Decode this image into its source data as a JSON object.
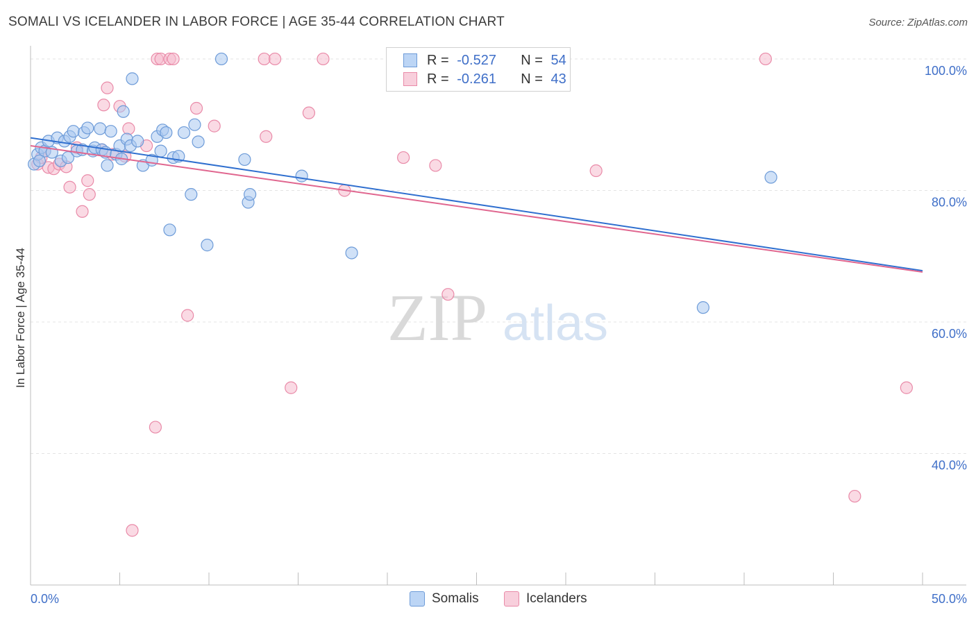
{
  "header": {
    "title": "SOMALI VS ICELANDER IN LABOR FORCE | AGE 35-44 CORRELATION CHART",
    "source": "Source: ZipAtlas.com"
  },
  "watermark": {
    "zip": "ZIP",
    "atlas": "atlas"
  },
  "legend": {
    "somali": {
      "r_label": "R =",
      "r_value": "-0.527",
      "n_label": "N =",
      "n_value": "54"
    },
    "icelander": {
      "r_label": "R =",
      "r_value": "-0.261",
      "n_label": "N =",
      "n_value": "43"
    }
  },
  "bottom_legend": {
    "somalis": "Somalis",
    "icelanders": "Icelanders"
  },
  "colors": {
    "somali_fill": "#a9c8f0",
    "somali_stroke": "#6d9bd8",
    "somali_line": "#2f6fcf",
    "icelander_fill": "#f6bccd",
    "icelander_stroke": "#e98aa8",
    "icelander_line": "#e0668f",
    "tick_text": "#3f6fc8"
  },
  "chart_data": {
    "type": "scatter",
    "title": "SOMALI VS ICELANDER IN LABOR FORCE | AGE 35-44 CORRELATION CHART",
    "ylabel": "In Labor Force | Age 35-44",
    "xlabel": "",
    "xlim": [
      0,
      50
    ],
    "ylim": [
      20,
      102
    ],
    "x_ticks": [
      {
        "value": 0,
        "label": "0.0%"
      },
      {
        "value": 50,
        "label": "50.0%"
      }
    ],
    "y_ticks": [
      {
        "value": 100,
        "label": "100.0%"
      },
      {
        "value": 80,
        "label": "80.0%"
      },
      {
        "value": 60,
        "label": "60.0%"
      },
      {
        "value": 40,
        "label": "40.0%"
      }
    ],
    "grid": true,
    "series": [
      {
        "name": "Somalis",
        "trend": {
          "x": [
            0,
            50
          ],
          "y": [
            88.0,
            67.8
          ]
        },
        "points": [
          [
            0.2,
            84.0
          ],
          [
            0.4,
            85.5
          ],
          [
            0.6,
            86.5
          ],
          [
            0.8,
            86.0
          ],
          [
            1.0,
            87.5
          ],
          [
            1.2,
            85.8
          ],
          [
            1.5,
            88.0
          ],
          [
            1.7,
            84.5
          ],
          [
            1.9,
            87.5
          ],
          [
            2.1,
            85.0
          ],
          [
            2.2,
            88.2
          ],
          [
            2.4,
            89.0
          ],
          [
            2.6,
            86.0
          ],
          [
            2.9,
            86.2
          ],
          [
            3.0,
            88.8
          ],
          [
            3.2,
            89.5
          ],
          [
            3.5,
            86.0
          ],
          [
            3.6,
            86.5
          ],
          [
            3.9,
            89.4
          ],
          [
            4.0,
            86.2
          ],
          [
            4.2,
            85.8
          ],
          [
            4.3,
            83.8
          ],
          [
            4.5,
            89.0
          ],
          [
            4.8,
            85.5
          ],
          [
            5.0,
            86.8
          ],
          [
            5.1,
            84.8
          ],
          [
            5.2,
            92.0
          ],
          [
            5.4,
            87.8
          ],
          [
            5.6,
            86.8
          ],
          [
            5.7,
            97.0
          ],
          [
            6.0,
            87.5
          ],
          [
            6.3,
            83.8
          ],
          [
            7.1,
            88.2
          ],
          [
            7.3,
            86.0
          ],
          [
            7.4,
            89.2
          ],
          [
            7.6,
            88.8
          ],
          [
            7.8,
            74.0
          ],
          [
            8.0,
            85.0
          ],
          [
            8.3,
            85.2
          ],
          [
            8.6,
            88.8
          ],
          [
            9.0,
            79.4
          ],
          [
            9.2,
            90.0
          ],
          [
            9.4,
            87.4
          ],
          [
            9.9,
            71.7
          ],
          [
            10.7,
            100.0
          ],
          [
            12.0,
            84.7
          ],
          [
            12.2,
            78.2
          ],
          [
            12.3,
            79.4
          ],
          [
            15.2,
            82.2
          ],
          [
            18.0,
            70.5
          ],
          [
            37.7,
            62.2
          ],
          [
            41.5,
            82.0
          ],
          [
            0.5,
            84.5
          ],
          [
            6.8,
            84.6
          ]
        ]
      },
      {
        "name": "Icelanders",
        "trend": {
          "x": [
            0,
            50
          ],
          "y": [
            86.8,
            67.6
          ]
        },
        "points": [
          [
            0.4,
            84.0
          ],
          [
            0.6,
            85.0
          ],
          [
            0.8,
            86.0
          ],
          [
            1.0,
            83.5
          ],
          [
            1.3,
            83.3
          ],
          [
            1.6,
            84.0
          ],
          [
            2.0,
            83.6
          ],
          [
            2.2,
            80.5
          ],
          [
            2.6,
            86.5
          ],
          [
            2.9,
            76.8
          ],
          [
            3.2,
            81.5
          ],
          [
            3.3,
            79.4
          ],
          [
            4.0,
            86.2
          ],
          [
            4.1,
            93.0
          ],
          [
            4.3,
            95.6
          ],
          [
            4.6,
            85.5
          ],
          [
            5.0,
            92.8
          ],
          [
            5.3,
            85.2
          ],
          [
            5.5,
            89.4
          ],
          [
            5.7,
            28.3
          ],
          [
            6.5,
            86.8
          ],
          [
            7.0,
            44.0
          ],
          [
            7.1,
            100.0
          ],
          [
            7.3,
            100.0
          ],
          [
            7.8,
            100.0
          ],
          [
            8.0,
            100.0
          ],
          [
            8.8,
            61.0
          ],
          [
            9.3,
            92.5
          ],
          [
            10.3,
            89.8
          ],
          [
            13.1,
            100.0
          ],
          [
            13.2,
            88.2
          ],
          [
            13.7,
            100.0
          ],
          [
            14.6,
            50.0
          ],
          [
            15.6,
            91.8
          ],
          [
            16.4,
            100.0
          ],
          [
            17.6,
            80.0
          ],
          [
            20.9,
            85.0
          ],
          [
            22.7,
            83.8
          ],
          [
            23.4,
            64.2
          ],
          [
            31.7,
            83.0
          ],
          [
            41.2,
            100.0
          ],
          [
            46.2,
            33.5
          ],
          [
            49.1,
            50.0
          ]
        ]
      }
    ]
  }
}
